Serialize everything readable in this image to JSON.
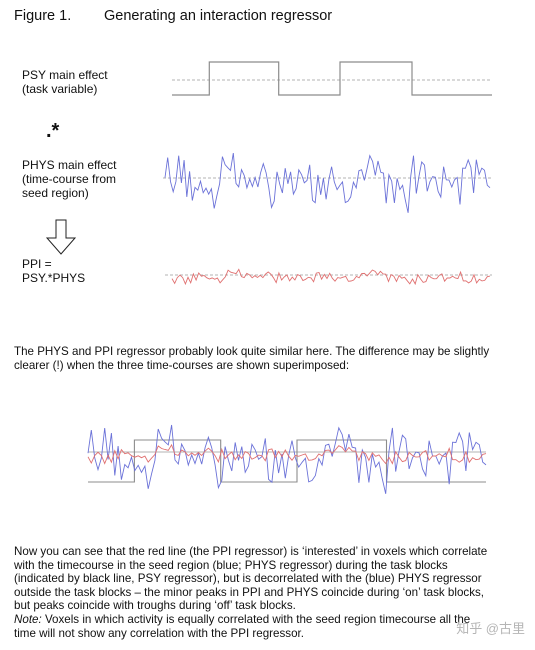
{
  "figure": {
    "number": "Figure 1.",
    "title": "Generating an interaction regressor"
  },
  "labels": {
    "psy_line1": "PSY main effect",
    "psy_line2": "(task variable)",
    "times_symbol": ".*",
    "phys_line1": "PHYS main effect",
    "phys_line2": "(time-course from",
    "phys_line3": "seed region)",
    "ppi_line1": "PPI =",
    "ppi_line2": "PSY.*PHYS"
  },
  "paragraph1": [
    "The PHYS and PPI regressor probably look quite similar here. The difference may be slightly",
    "clearer (!) when the three time-courses are shown superimposed:"
  ],
  "paragraph2": [
    "Now you can see that the red line (the PPI regressor) is ‘interested’ in voxels which correlate",
    "with the timecourse in the seed region (blue; PHYS regressor) during the task blocks",
    "(indicated by black line, PSY regressor), but is decorrelated with the (blue) PHYS regressor",
    "outside the task blocks – the minor peaks in PPI and PHYS coincide during ‘on’ task blocks,",
    "but peaks coincide with troughs during ‘off’ task blocks."
  ],
  "note": {
    "label": "Note:",
    "line1": " Voxels in which activity is equally correlated with the seed region timecourse all the",
    "line2": "time will not show any correlation with the PPI regressor."
  },
  "watermark": "知乎 @古里",
  "colors": {
    "psy": "#8c8c8c",
    "phys": "#6b72d8",
    "ppi": "#e07070",
    "dashed": "#9a9a9a"
  },
  "chart_data": {
    "type": "line",
    "x_count": 120,
    "psy_blocks": [
      [
        0,
        14,
        0
      ],
      [
        14,
        40,
        1
      ],
      [
        40,
        63,
        0
      ],
      [
        63,
        90,
        1
      ],
      [
        90,
        120,
        0
      ]
    ],
    "phys_seed": 7,
    "ppi_seed": 11
  }
}
